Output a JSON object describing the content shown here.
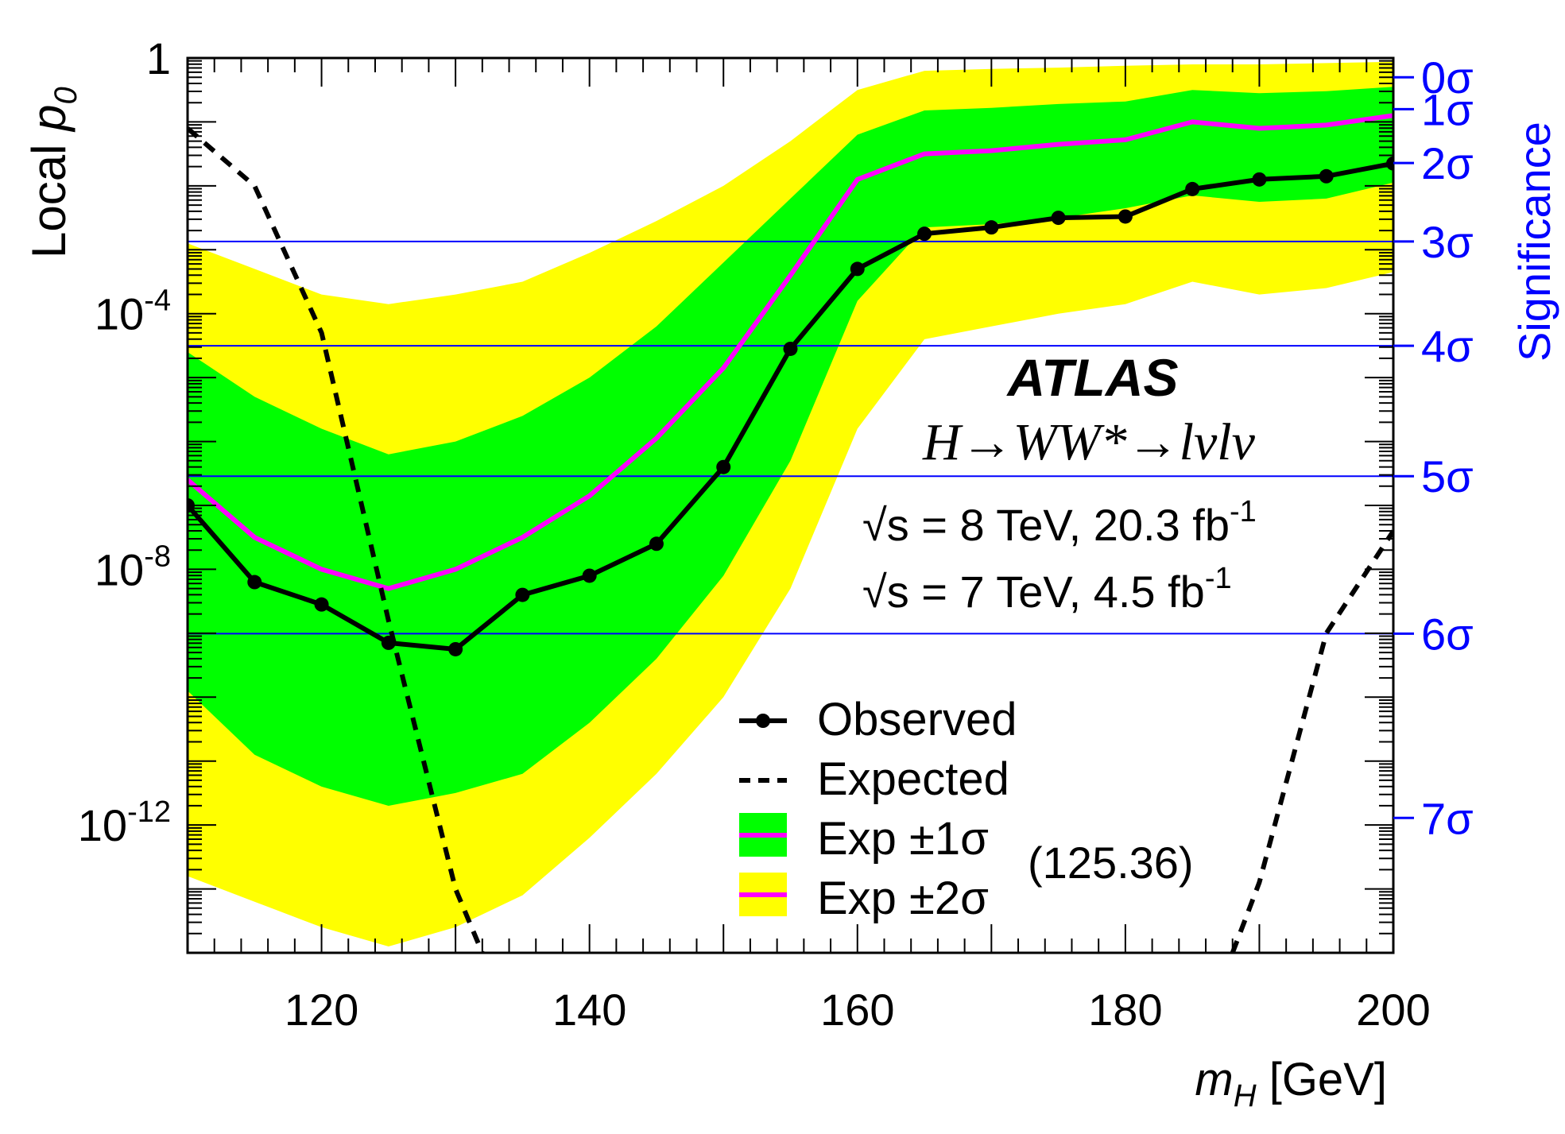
{
  "chart_data": {
    "type": "line",
    "title": "",
    "xlabel": {
      "var": "m",
      "sub": "H",
      "unit": " [GeV]"
    },
    "ylabel": {
      "text": "Local ",
      "var": "p",
      "sub": "0"
    },
    "y2label": "Significance",
    "xlim": [
      110,
      200
    ],
    "ylim_log10": [
      -14.0,
      0.0
    ],
    "yscale": "log",
    "grid": false,
    "x_ticks": [
      {
        "value": 120,
        "label": "120"
      },
      {
        "value": 140,
        "label": "140"
      },
      {
        "value": 160,
        "label": "160"
      },
      {
        "value": 180,
        "label": "180"
      },
      {
        "value": 200,
        "label": "200"
      }
    ],
    "y_ticks": [
      {
        "log10": 0,
        "base": "1",
        "exp": ""
      },
      {
        "log10": -4,
        "base": "10",
        "exp": "-4"
      },
      {
        "log10": -8,
        "base": "10",
        "exp": "-8"
      },
      {
        "log10": -12,
        "base": "10",
        "exp": "-12"
      }
    ],
    "sigma_levels": [
      {
        "label": "0",
        "log10": -0.301,
        "line": false
      },
      {
        "label": "1",
        "log10": -0.801,
        "line": false
      },
      {
        "label": "2",
        "log10": -1.643,
        "line": false
      },
      {
        "label": "3",
        "log10": -2.87,
        "line": true
      },
      {
        "label": "4",
        "log10": -4.503,
        "line": true
      },
      {
        "label": "5",
        "log10": -6.543,
        "line": true
      },
      {
        "label": "6",
        "log10": -9.006,
        "line": true
      },
      {
        "label": "7",
        "log10": -11.89,
        "line": false
      }
    ],
    "sigma_symbol": "σ",
    "mass_points": [
      110,
      115,
      120,
      125,
      130,
      135,
      140,
      145,
      150,
      155,
      160,
      165,
      170,
      175,
      180,
      185,
      190,
      195,
      200
    ],
    "observed_log10": [
      -7.0,
      -8.2,
      -8.55,
      -9.15,
      -9.25,
      -8.4,
      -8.1,
      -7.6,
      -6.4,
      -4.55,
      -3.3,
      -2.75,
      -2.65,
      -2.5,
      -2.48,
      -2.05,
      -1.9,
      -1.85,
      -1.65
    ],
    "expected_curve": {
      "x": [
        110,
        115,
        120,
        125,
        130,
        132
      ],
      "log10": [
        -1.1,
        -2.0,
        -4.3,
        -8.8,
        -13.0,
        -14.0
      ],
      "x_right": [
        188,
        190,
        195,
        200
      ],
      "log10_right": [
        -14.0,
        -12.9,
        -9.0,
        -7.4
      ]
    },
    "expected_median_log10": [
      -6.6,
      -7.5,
      -8.0,
      -8.3,
      -8.0,
      -7.5,
      -6.85,
      -5.95,
      -4.85,
      -3.4,
      -1.9,
      -1.5,
      -1.45,
      -1.35,
      -1.28,
      -1.0,
      -1.1,
      -1.05,
      -0.9
    ],
    "band_1sigma_log10": {
      "lo": [
        -9.9,
        -10.9,
        -11.4,
        -11.7,
        -11.5,
        -11.2,
        -10.4,
        -9.4,
        -8.1,
        -6.3,
        -3.8,
        -2.65,
        -2.6,
        -2.5,
        -2.35,
        -2.15,
        -2.25,
        -2.2,
        -1.95
      ],
      "hi": [
        -4.6,
        -5.3,
        -5.8,
        -6.2,
        -6.0,
        -5.6,
        -5.0,
        -4.2,
        -3.2,
        -2.2,
        -1.2,
        -0.82,
        -0.78,
        -0.72,
        -0.68,
        -0.5,
        -0.55,
        -0.52,
        -0.45
      ]
    },
    "band_2sigma_log10": {
      "lo": [
        -12.8,
        -13.2,
        -13.6,
        -13.9,
        -13.6,
        -13.1,
        -12.2,
        -11.2,
        -10.0,
        -8.3,
        -5.8,
        -4.4,
        -4.2,
        -4.0,
        -3.85,
        -3.5,
        -3.7,
        -3.6,
        -3.35
      ],
      "hi": [
        -2.9,
        -3.3,
        -3.7,
        -3.85,
        -3.7,
        -3.5,
        -3.05,
        -2.55,
        -2.0,
        -1.3,
        -0.5,
        -0.2,
        -0.17,
        -0.15,
        -0.12,
        -0.1,
        -0.1,
        -0.08,
        -0.06
      ]
    },
    "annotation_value": "(125.36)",
    "legend": {
      "placement": "bottom-center",
      "entries": [
        {
          "label": "Observed",
          "style": "solid-marker"
        },
        {
          "label": "Expected",
          "style": "dashed"
        },
        {
          "label": "Exp ±1σ",
          "style": "band-green"
        },
        {
          "label": "Exp ±2σ",
          "style": "band-yellow"
        }
      ]
    },
    "labels": {
      "experiment": "ATLAS",
      "process": "H→WW*→lνlν",
      "lumi": [
        {
          "pre": "√s = 8 TeV, 20.3 fb",
          "exp": "-1"
        },
        {
          "pre": "√s = 7 TeV, 4.5 fb",
          "exp": "-1"
        }
      ]
    },
    "colors": {
      "observed": "#000000",
      "expected": "#000000",
      "median": "#ff00ff",
      "band1": "#00ff00",
      "band2": "#ffff00",
      "significance": "#0000ff"
    }
  }
}
